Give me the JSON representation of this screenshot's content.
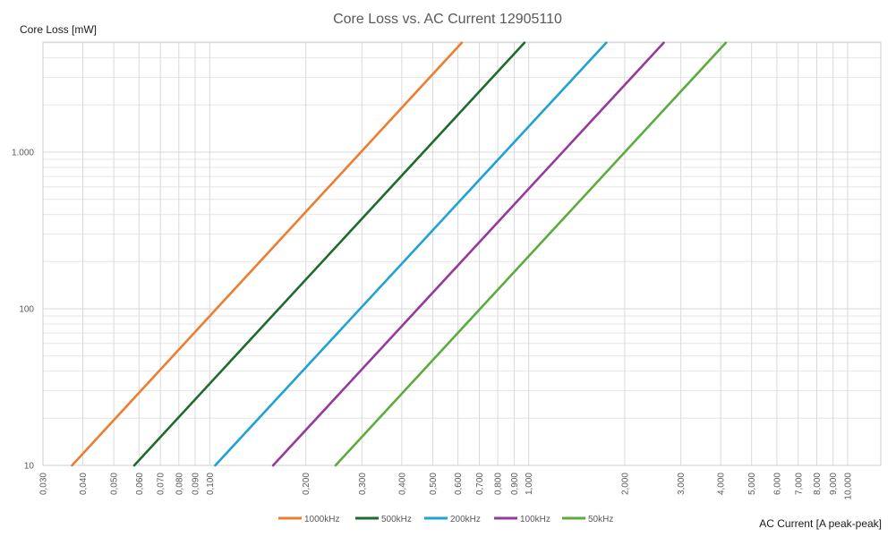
{
  "chart_data": {
    "type": "line",
    "title": "Core Loss vs. AC Current 12905110",
    "xlabel": "AC Current [A peak-peak]",
    "ylabel": "Core Loss [mW]",
    "x_scale": "log",
    "y_scale": "log",
    "xlim": [
      0.03,
      13
    ],
    "ylim": [
      10,
      5000
    ],
    "x_ticks": [
      0.03,
      0.04,
      0.05,
      0.06,
      0.07,
      0.08,
      0.09,
      0.1,
      0.2,
      0.3,
      0.4,
      0.5,
      0.6,
      0.7,
      0.8,
      0.9,
      1,
      2,
      3,
      4,
      5,
      6,
      7,
      8,
      9,
      10
    ],
    "x_tick_labels": [
      "0,030",
      "0,040",
      "0,050",
      "0,060",
      "0,070",
      "0,080",
      "0,090",
      "0,100",
      "0,200",
      "0,300",
      "0,400",
      "0,500",
      "0,600",
      "0,700",
      "0,800",
      "0,900",
      "1,000",
      "2,000",
      "3,000",
      "4,000",
      "5,000",
      "6,000",
      "7,000",
      "8,000",
      "9,000",
      "10,000"
    ],
    "y_ticks": [
      10,
      100,
      1000
    ],
    "y_tick_labels": [
      "10",
      "100",
      "1.000"
    ],
    "grid": true,
    "legend_position": "bottom",
    "series": [
      {
        "name": "1000kHz",
        "color": "#ed7d31",
        "x": [
          0.037,
          0.617
        ],
        "y": [
          10,
          5000
        ]
      },
      {
        "name": "500kHz",
        "color": "#1e6b2e",
        "x": [
          0.058,
          0.97
        ],
        "y": [
          10,
          5000
        ]
      },
      {
        "name": "200kHz",
        "color": "#1fa2d4",
        "x": [
          0.104,
          1.75
        ],
        "y": [
          10,
          5000
        ]
      },
      {
        "name": "100kHz",
        "color": "#953a9c",
        "x": [
          0.158,
          2.65
        ],
        "y": [
          10,
          5000
        ]
      },
      {
        "name": "50kHz",
        "color": "#5bac3d",
        "x": [
          0.248,
          4.15
        ],
        "y": [
          10,
          5000
        ]
      }
    ]
  }
}
